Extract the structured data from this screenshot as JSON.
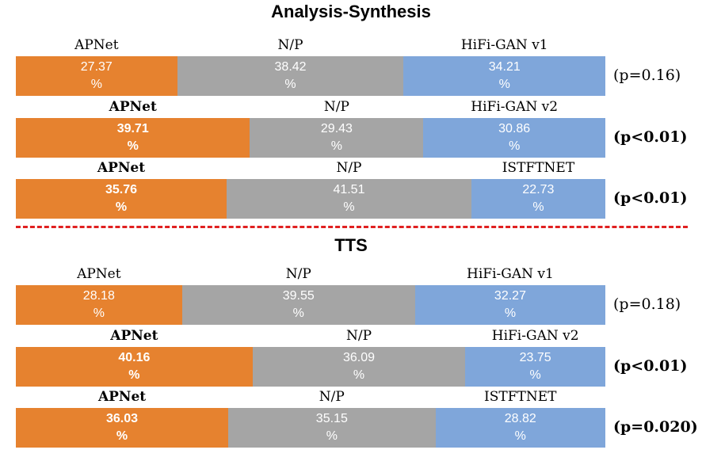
{
  "chart_data": {
    "type": "stacked-bar",
    "colors": {
      "apnet": "#e6822f",
      "np": "#a5a5a5",
      "baseline": "#7fa6da"
    },
    "sections": [
      {
        "title": "Analysis-Synthesis",
        "rows": [
          {
            "left_label": "APNet",
            "mid_label": "N/P",
            "right_label": "HiFi-GAN v1",
            "values": [
              27.37,
              38.42,
              34.21
            ],
            "value_labels": [
              "27.37",
              "38.42",
              "34.21"
            ],
            "unit": "%",
            "p": "(p=0.16)",
            "significant": false
          },
          {
            "left_label": "APNet",
            "mid_label": "N/P",
            "right_label": "HiFi-GAN v2",
            "values": [
              39.71,
              29.43,
              30.86
            ],
            "value_labels": [
              "39.71",
              "29.43",
              "30.86"
            ],
            "unit": "%",
            "p": "(p<0.01)",
            "significant": true
          },
          {
            "left_label": "APNet",
            "mid_label": "N/P",
            "right_label": "ISTFTNET",
            "values": [
              35.76,
              41.51,
              22.73
            ],
            "value_labels": [
              "35.76",
              "41.51",
              "22.73"
            ],
            "unit": "%",
            "p": "(p<0.01)",
            "significant": true
          }
        ]
      },
      {
        "title": "TTS",
        "rows": [
          {
            "left_label": "APNet",
            "mid_label": "N/P",
            "right_label": "HiFi-GAN v1",
            "values": [
              28.18,
              39.55,
              32.27
            ],
            "value_labels": [
              "28.18",
              "39.55",
              "32.27"
            ],
            "unit": "%",
            "p": "(p=0.18)",
            "significant": false
          },
          {
            "left_label": "APNet",
            "mid_label": "N/P",
            "right_label": "HiFi-GAN v2",
            "values": [
              40.16,
              36.09,
              23.75
            ],
            "value_labels": [
              "40.16",
              "36.09",
              "23.75"
            ],
            "unit": "%",
            "p": "(p<0.01)",
            "significant": true
          },
          {
            "left_label": "APNet",
            "mid_label": "N/P",
            "right_label": "ISTFTNET",
            "values": [
              36.03,
              35.15,
              28.82
            ],
            "value_labels": [
              "36.03",
              "35.15",
              "28.82"
            ],
            "unit": "%",
            "p": "(p=0.020)",
            "significant": true
          }
        ]
      }
    ]
  }
}
